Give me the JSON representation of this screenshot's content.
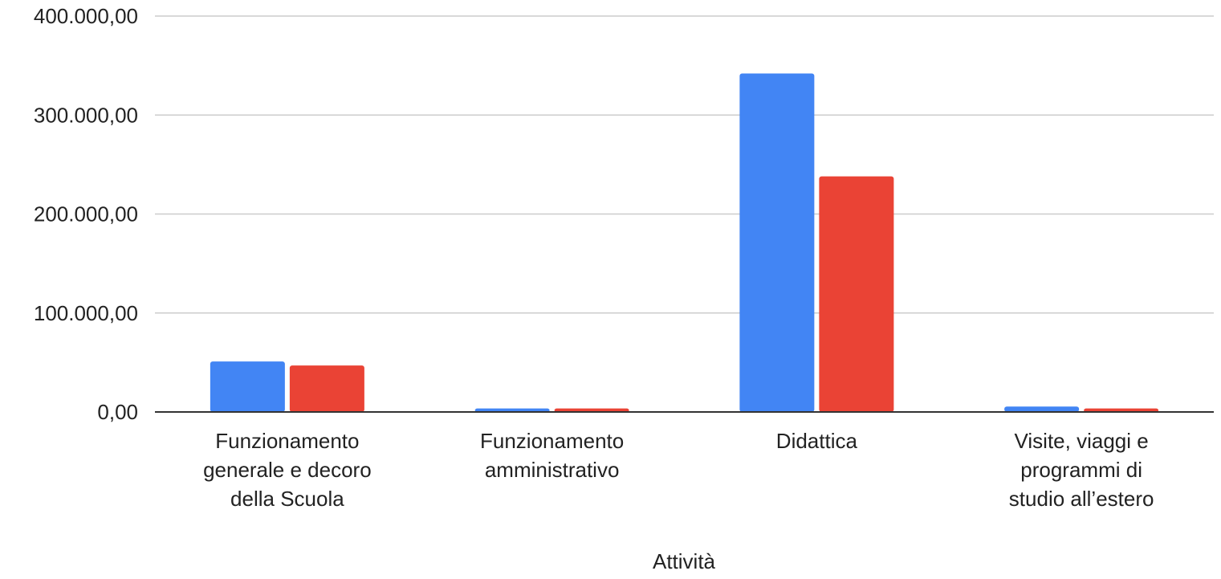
{
  "chart_data": {
    "type": "bar",
    "title": "",
    "xlabel": "Attività",
    "ylabel": "",
    "ylim": [
      0,
      400000
    ],
    "yticks": [
      0,
      100000,
      200000,
      300000,
      400000
    ],
    "ytick_labels": [
      "0,00",
      "100.000,00",
      "200.000,00",
      "300.000,00",
      "400.000,00"
    ],
    "grid": true,
    "legend": "none",
    "categories": [
      [
        "Funzionamento",
        "generale e decoro",
        "della Scuola"
      ],
      [
        "Funzionamento",
        "amministrativo"
      ],
      [
        "Didattica"
      ],
      [
        "Visite, viaggi e",
        "programmi di",
        "studio all’estero"
      ]
    ],
    "series": [
      {
        "color": "#4285F4",
        "values": [
          51000,
          3500,
          342000,
          5500
        ]
      },
      {
        "color": "#EA4335",
        "values": [
          47000,
          3500,
          238000,
          3500
        ]
      }
    ]
  }
}
